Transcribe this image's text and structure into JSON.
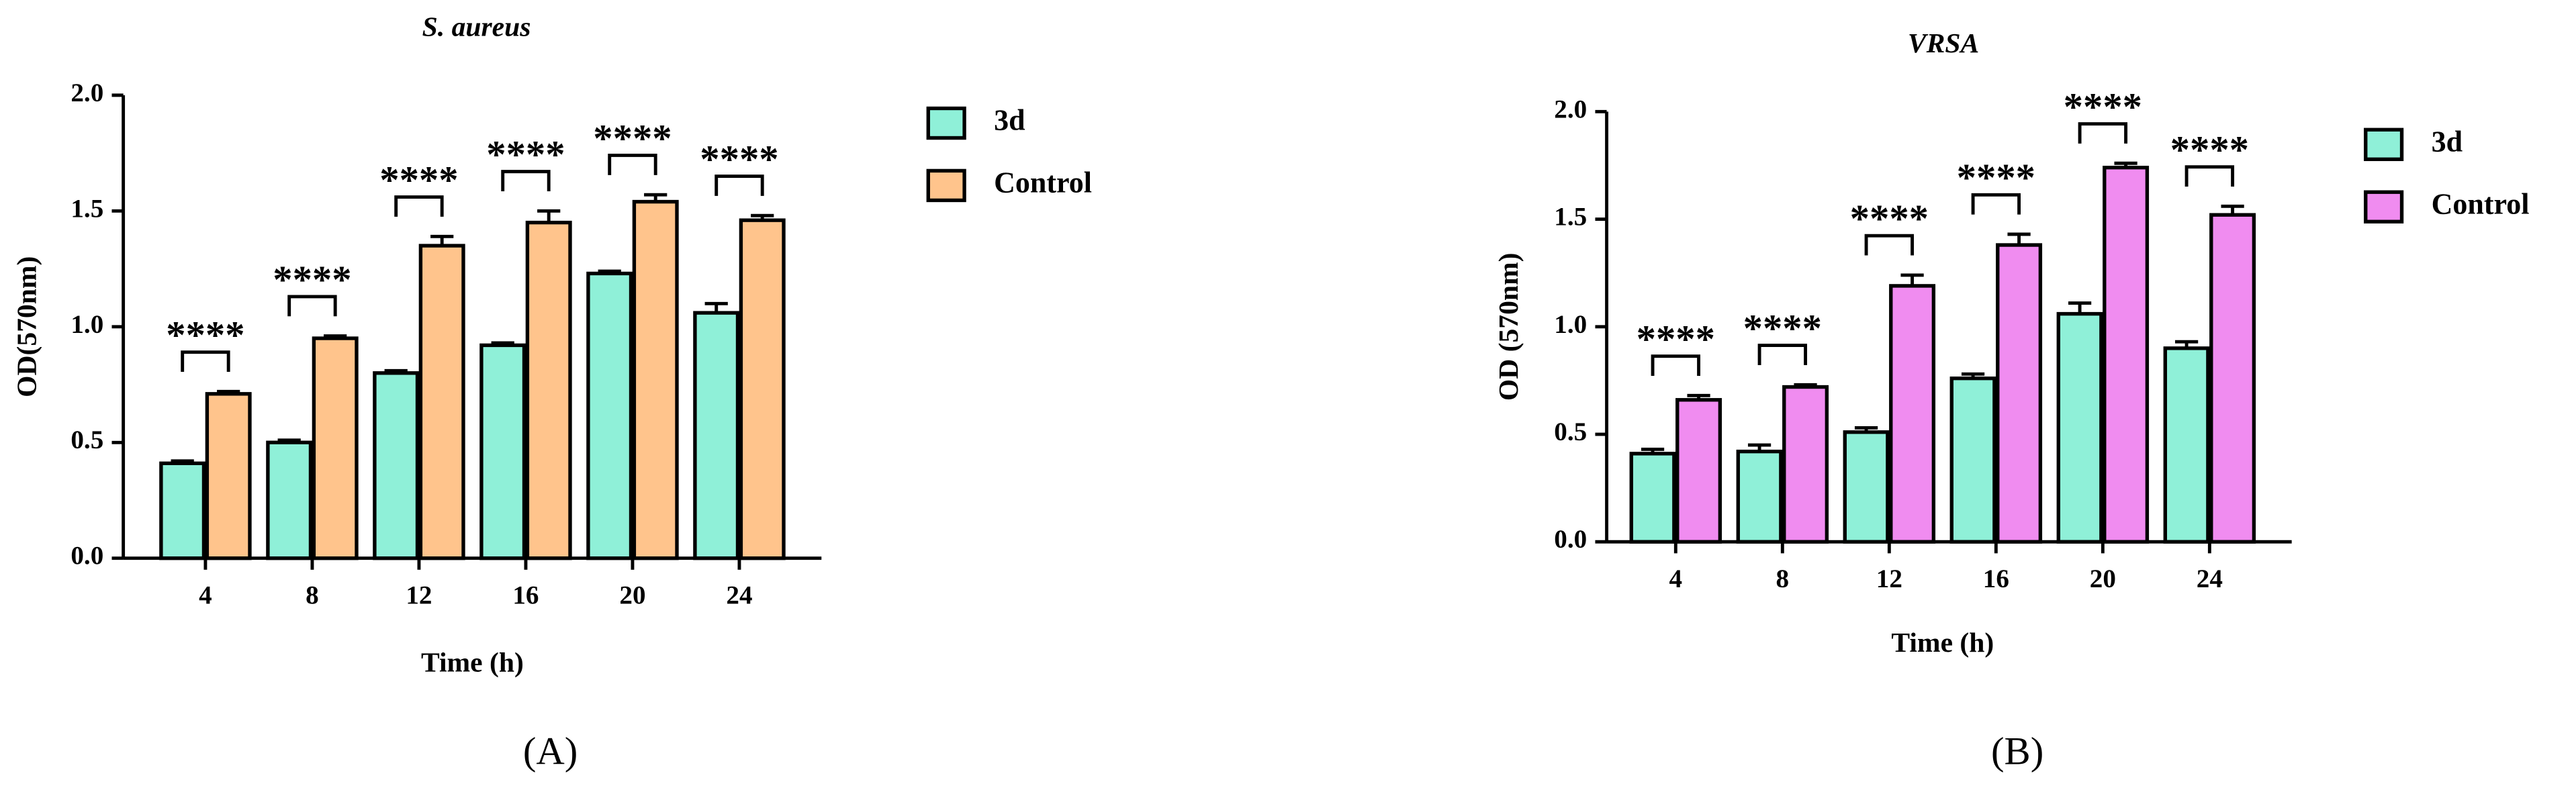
{
  "chart_data": [
    {
      "type": "bar",
      "title": "S. aureus",
      "x_label": "Time (h)",
      "y_label": "OD(570nm)",
      "panel_label": "(A)",
      "categories": [
        "4",
        "8",
        "12",
        "16",
        "20",
        "24"
      ],
      "series": [
        {
          "name": "3d",
          "color": "#8ff0d8",
          "values": [
            0.41,
            0.5,
            0.8,
            0.92,
            1.23,
            1.06
          ],
          "errors": [
            0.01,
            0.01,
            0.01,
            0.01,
            0.01,
            0.04
          ]
        },
        {
          "name": "Control",
          "color": "#ffc48c",
          "values": [
            0.71,
            0.95,
            1.35,
            1.45,
            1.54,
            1.46
          ],
          "errors": [
            0.01,
            0.01,
            0.04,
            0.05,
            0.03,
            0.02
          ]
        }
      ],
      "significance": [
        "****",
        "****",
        "****",
        "****",
        "****",
        "****"
      ],
      "ylim": [
        0,
        2
      ],
      "yticks": [
        {
          "value": 0,
          "label": "0.0"
        },
        0.5,
        {
          "value": 1,
          "label": "1.0"
        },
        1.5,
        {
          "value": 2,
          "label": "2.0"
        }
      ]
    },
    {
      "type": "bar",
      "title": "VRSA",
      "x_label": "Time (h)",
      "y_label": "OD (570nm)",
      "panel_label": "(B)",
      "categories": [
        "4",
        "8",
        "12",
        "16",
        "20",
        "24"
      ],
      "series": [
        {
          "name": "3d",
          "color": "#8ff0d8",
          "values": [
            0.41,
            0.42,
            0.51,
            0.76,
            1.06,
            0.9
          ],
          "errors": [
            0.02,
            0.03,
            0.02,
            0.02,
            0.05,
            0.03
          ]
        },
        {
          "name": "Control",
          "color": "#f08cf0",
          "values": [
            0.66,
            0.72,
            1.19,
            1.38,
            1.74,
            1.52
          ],
          "errors": [
            0.02,
            0.01,
            0.05,
            0.05,
            0.02,
            0.04
          ]
        }
      ],
      "significance": [
        "****",
        "****",
        "****",
        "****",
        "****",
        "****"
      ],
      "ylim": [
        0,
        2
      ],
      "yticks": [
        {
          "value": 0,
          "label": "0.0"
        },
        0.5,
        {
          "value": 1,
          "label": "1.0"
        },
        1.5,
        {
          "value": 2,
          "label": "2.0"
        }
      ]
    }
  ]
}
